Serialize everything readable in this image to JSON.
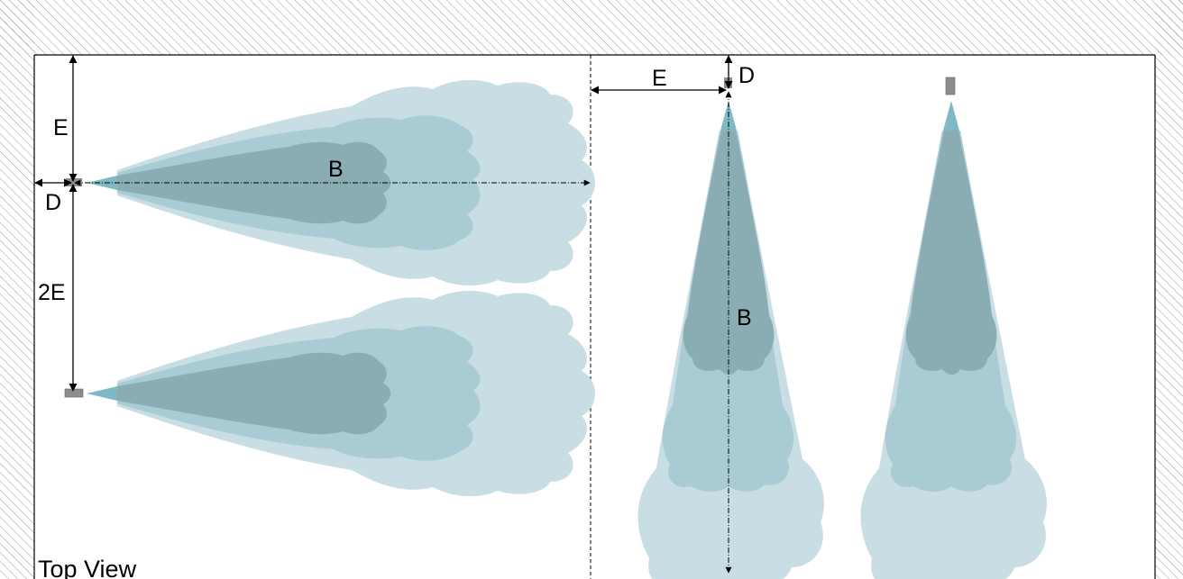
{
  "labels": {
    "top_view": "Top View",
    "left_e": "E",
    "left_d": "D",
    "left_b": "B",
    "left_2e": "2E",
    "right_e": "E",
    "right_d": "D",
    "right_b": "B"
  },
  "colors": {
    "wall_hatch": "#9a9a9a",
    "throw_outer": "#c9dde4",
    "throw_middle": "#a9ccd4",
    "throw_inner": "#8aacb3",
    "nozzle": "#7fb9c6",
    "device": "#8c8c8c"
  }
}
